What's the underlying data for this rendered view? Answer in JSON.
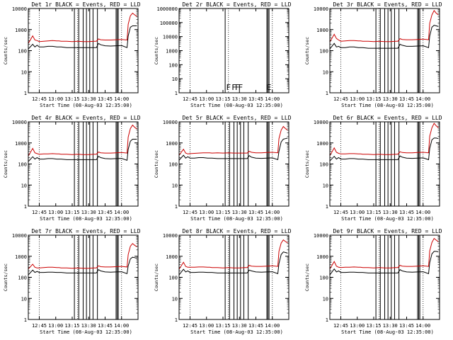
{
  "figure": {
    "ylabel": "Counts/sec",
    "xlabel": "Start Time (08-Aug-03 12:35:00)",
    "series_colors": {
      "events": "#000000",
      "lld": "#cc0000"
    }
  },
  "chart_data": [
    {
      "type": "line",
      "id": "det1",
      "title": "Det 1r BLACK = Events, RED = LLD",
      "ylim": [
        1,
        10000
      ],
      "ytick_labels": [
        "1",
        "10",
        "100",
        "1000",
        "10000"
      ],
      "xtick_labels": [
        "12:45",
        "13:00",
        "13:15",
        "13:30",
        "13:45",
        "14:00"
      ],
      "xlabel": "Start Time (08-Aug-03 12:35:00)",
      "ylabel": "Counts/sec",
      "x_minutes": [
        0,
        4,
        6,
        8,
        10,
        14,
        18,
        22,
        26,
        28,
        30,
        35,
        40,
        45,
        50,
        55,
        60,
        62,
        64,
        66,
        70,
        75,
        80,
        85,
        90,
        91,
        93,
        95,
        97,
        99
      ],
      "series": [
        {
          "name": "Events",
          "values": [
            120,
            200,
            150,
            180,
            150,
            150,
            160,
            160,
            150,
            150,
            150,
            140,
            140,
            140,
            140,
            140,
            140,
            140,
            220,
            190,
            170,
            165,
            170,
            175,
            140,
            500,
            1300,
            1500,
            1500,
            1500
          ]
        },
        {
          "name": "LLD",
          "values": [
            220,
            500,
            320,
            300,
            270,
            280,
            290,
            300,
            290,
            290,
            280,
            280,
            270,
            280,
            270,
            270,
            280,
            280,
            360,
            330,
            320,
            320,
            330,
            340,
            320,
            1800,
            4500,
            6000,
            5000,
            4200
          ]
        }
      ],
      "vlines_dotted": [
        10,
        45,
        85
      ],
      "vlines_solid": [
        42,
        46,
        50,
        53,
        56,
        59,
        63,
        80,
        81,
        82
      ]
    },
    {
      "type": "line",
      "id": "det2",
      "title": "Det 2r BLACK = Events, RED = LLD",
      "ylim": [
        1,
        1000000
      ],
      "ytick_labels": [
        "1",
        "10",
        "100",
        "1000",
        "10000",
        "100000",
        "1000000"
      ],
      "xtick_labels": [
        "12:45",
        "13:00",
        "13:15",
        "13:30",
        "13:45",
        "14:00"
      ],
      "xlabel": "Start Time (08-Aug-03 12:35:00)",
      "ylabel": "Counts/sec",
      "x_minutes": [],
      "series": [],
      "vlines_dotted": [
        10,
        45,
        85
      ],
      "vlines_solid": [
        42,
        80,
        81,
        82
      ],
      "flags": [
        {
          "label": "F",
          "x_minutes": 45
        },
        {
          "label": "F",
          "x_minutes": 50
        },
        {
          "label": "F",
          "x_minutes": 53
        },
        {
          "label": "F",
          "x_minutes": 56
        },
        {
          "label": "E",
          "x_minutes": 82
        }
      ]
    },
    {
      "type": "line",
      "id": "det3",
      "title": "Det 3r BLACK = Events, RED = LLD",
      "ylim": [
        1,
        10000
      ],
      "ytick_labels": [
        "1",
        "10",
        "100",
        "1000",
        "10000"
      ],
      "xtick_labels": [
        "12:45",
        "13:00",
        "13:15",
        "13:30",
        "13:45",
        "14:00"
      ],
      "xlabel": "Start Time (08-Aug-03 12:35:00)",
      "ylabel": "Counts/sec",
      "x_minutes": [
        0,
        4,
        6,
        8,
        10,
        14,
        18,
        22,
        26,
        28,
        30,
        35,
        40,
        45,
        50,
        55,
        60,
        62,
        64,
        66,
        70,
        75,
        80,
        85,
        90,
        91,
        93,
        95,
        97,
        99
      ],
      "series": [
        {
          "name": "Events",
          "values": [
            120,
            220,
            150,
            160,
            140,
            140,
            150,
            150,
            140,
            140,
            140,
            130,
            130,
            130,
            130,
            130,
            130,
            130,
            200,
            180,
            160,
            160,
            165,
            170,
            140,
            500,
            1300,
            1600,
            1500,
            1400
          ]
        },
        {
          "name": "LLD",
          "values": [
            260,
            600,
            380,
            320,
            280,
            290,
            300,
            300,
            290,
            290,
            280,
            280,
            270,
            280,
            270,
            270,
            280,
            280,
            370,
            340,
            330,
            330,
            340,
            350,
            330,
            2000,
            5000,
            8000,
            6000,
            5000
          ]
        }
      ],
      "vlines_dotted": [
        10,
        45,
        85
      ],
      "vlines_solid": [
        42,
        46,
        50,
        53,
        56,
        59,
        63,
        80,
        81,
        82
      ]
    },
    {
      "type": "line",
      "id": "det4",
      "title": "Det 4r BLACK = Events, RED = LLD",
      "ylim": [
        1,
        10000
      ],
      "ytick_labels": [
        "1",
        "10",
        "100",
        "1000",
        "10000"
      ],
      "xtick_labels": [
        "12:45",
        "13:00",
        "13:15",
        "13:30",
        "13:45",
        "14:00"
      ],
      "xlabel": "Start Time (08-Aug-03 12:35:00)",
      "ylabel": "Counts/sec",
      "x_minutes": [
        0,
        4,
        6,
        8,
        10,
        14,
        18,
        22,
        26,
        28,
        30,
        35,
        40,
        45,
        50,
        55,
        60,
        62,
        64,
        66,
        70,
        75,
        80,
        85,
        90,
        91,
        93,
        95,
        97,
        99
      ],
      "series": [
        {
          "name": "Events",
          "values": [
            130,
            220,
            170,
            200,
            170,
            170,
            180,
            180,
            170,
            170,
            170,
            160,
            160,
            160,
            160,
            160,
            160,
            160,
            230,
            200,
            180,
            175,
            180,
            185,
            150,
            500,
            1200,
            1500,
            1500,
            1500
          ]
        },
        {
          "name": "LLD",
          "values": [
            240,
            550,
            340,
            310,
            290,
            300,
            300,
            310,
            300,
            300,
            290,
            290,
            280,
            290,
            280,
            280,
            290,
            290,
            370,
            340,
            330,
            330,
            340,
            350,
            330,
            1900,
            4800,
            7000,
            5500,
            4500
          ]
        }
      ],
      "vlines_dotted": [
        10,
        45,
        85
      ],
      "vlines_solid": [
        42,
        46,
        50,
        53,
        56,
        59,
        63,
        80,
        81,
        82
      ]
    },
    {
      "type": "line",
      "id": "det5",
      "title": "Det 5r BLACK = Events, RED = LLD",
      "ylim": [
        1,
        10000
      ],
      "ytick_labels": [
        "1",
        "10",
        "100",
        "1000",
        "10000"
      ],
      "xtick_labels": [
        "12:45",
        "13:00",
        "13:15",
        "13:30",
        "13:45",
        "14:00"
      ],
      "xlabel": "Start Time (08-Aug-03 12:35:00)",
      "ylabel": "Counts/sec",
      "x_minutes": [
        0,
        4,
        6,
        8,
        10,
        14,
        18,
        22,
        26,
        28,
        30,
        35,
        40,
        45,
        50,
        55,
        60,
        62,
        64,
        66,
        70,
        75,
        80,
        85,
        90,
        91,
        93,
        95,
        97,
        99
      ],
      "series": [
        {
          "name": "Events",
          "values": [
            150,
            260,
            190,
            220,
            190,
            190,
            200,
            200,
            190,
            190,
            190,
            180,
            180,
            180,
            180,
            180,
            180,
            180,
            250,
            210,
            190,
            185,
            190,
            195,
            160,
            400,
            1100,
            1500,
            1600,
            1700
          ]
        },
        {
          "name": "LLD",
          "values": [
            260,
            500,
            330,
            300,
            310,
            320,
            330,
            340,
            340,
            340,
            330,
            340,
            330,
            340,
            330,
            330,
            330,
            330,
            400,
            360,
            340,
            340,
            350,
            360,
            340,
            1600,
            4000,
            6000,
            4800,
            4000
          ]
        }
      ],
      "vlines_dotted": [
        10,
        45,
        85
      ],
      "vlines_solid": [
        42,
        46,
        50,
        53,
        56,
        59,
        63,
        80,
        81,
        82
      ]
    },
    {
      "type": "line",
      "id": "det6",
      "title": "Det 6r BLACK = Events, RED = LLD",
      "ylim": [
        1,
        10000
      ],
      "ytick_labels": [
        "1",
        "10",
        "100",
        "1000",
        "10000"
      ],
      "xtick_labels": [
        "12:45",
        "13:00",
        "13:15",
        "13:30",
        "13:45",
        "14:00"
      ],
      "xlabel": "Start Time (08-Aug-03 12:35:00)",
      "ylabel": "Counts/sec",
      "x_minutes": [
        0,
        4,
        6,
        8,
        10,
        14,
        18,
        22,
        26,
        28,
        30,
        35,
        40,
        45,
        50,
        55,
        60,
        62,
        64,
        66,
        70,
        75,
        80,
        85,
        90,
        91,
        93,
        95,
        97,
        99
      ],
      "series": [
        {
          "name": "Events",
          "values": [
            140,
            230,
            170,
            200,
            170,
            170,
            180,
            180,
            170,
            170,
            170,
            160,
            160,
            160,
            160,
            160,
            160,
            160,
            240,
            210,
            190,
            185,
            190,
            195,
            160,
            550,
            1400,
            1700,
            1700,
            1600
          ]
        },
        {
          "name": "LLD",
          "values": [
            250,
            580,
            360,
            320,
            300,
            300,
            310,
            310,
            300,
            300,
            290,
            290,
            280,
            290,
            280,
            280,
            290,
            290,
            380,
            350,
            340,
            340,
            350,
            360,
            340,
            2100,
            5200,
            8500,
            6500,
            5200
          ]
        }
      ],
      "vlines_dotted": [
        10,
        45,
        85
      ],
      "vlines_solid": [
        42,
        46,
        50,
        53,
        56,
        59,
        63,
        80,
        81,
        82
      ]
    },
    {
      "type": "line",
      "id": "det7",
      "title": "Det 7r BLACK = Events, RED = LLD",
      "ylim": [
        1,
        10000
      ],
      "ytick_labels": [
        "1",
        "10",
        "100",
        "1000",
        "10000"
      ],
      "xtick_labels": [
        "12:45",
        "13:00",
        "13:15",
        "13:30",
        "13:45",
        "14:00"
      ],
      "xlabel": "Start Time (08-Aug-03 12:35:00)",
      "ylabel": "Counts/sec",
      "x_minutes": [
        0,
        4,
        6,
        8,
        10,
        14,
        18,
        22,
        26,
        28,
        30,
        35,
        40,
        45,
        50,
        55,
        60,
        62,
        64,
        66,
        70,
        75,
        80,
        85,
        90,
        91,
        93,
        95,
        97,
        99
      ],
      "series": [
        {
          "name": "Events",
          "values": [
            130,
            220,
            170,
            190,
            170,
            170,
            175,
            175,
            170,
            170,
            170,
            160,
            160,
            160,
            160,
            160,
            160,
            160,
            230,
            200,
            180,
            175,
            180,
            185,
            150,
            350,
            750,
            900,
            850,
            800
          ]
        },
        {
          "name": "LLD",
          "values": [
            250,
            420,
            300,
            280,
            280,
            290,
            300,
            300,
            290,
            290,
            280,
            280,
            270,
            280,
            270,
            270,
            280,
            280,
            350,
            320,
            310,
            310,
            320,
            330,
            310,
            1200,
            3000,
            4000,
            3300,
            2800
          ]
        }
      ],
      "vlines_dotted": [
        10,
        45,
        85
      ],
      "vlines_solid": [
        42,
        46,
        50,
        53,
        56,
        59,
        63,
        80,
        81,
        82
      ]
    },
    {
      "type": "line",
      "id": "det8",
      "title": "Det 8r BLACK = Events, RED = LLD",
      "ylim": [
        1,
        10000
      ],
      "ytick_labels": [
        "1",
        "10",
        "100",
        "1000",
        "10000"
      ],
      "xtick_labels": [
        "12:45",
        "13:00",
        "13:15",
        "13:30",
        "13:45",
        "14:00"
      ],
      "xlabel": "Start Time (08-Aug-03 12:35:00)",
      "ylabel": "Counts/sec",
      "x_minutes": [
        0,
        4,
        6,
        8,
        10,
        14,
        18,
        22,
        26,
        28,
        30,
        35,
        40,
        45,
        50,
        55,
        60,
        62,
        64,
        66,
        70,
        75,
        80,
        85,
        90,
        91,
        93,
        95,
        97,
        99
      ],
      "series": [
        {
          "name": "Events",
          "values": [
            130,
            240,
            180,
            200,
            170,
            170,
            175,
            175,
            170,
            170,
            170,
            160,
            160,
            160,
            160,
            160,
            160,
            160,
            220,
            200,
            180,
            175,
            180,
            185,
            150,
            450,
            1200,
            1600,
            1500,
            1400
          ]
        },
        {
          "name": "LLD",
          "values": [
            240,
            520,
            330,
            300,
            300,
            300,
            310,
            310,
            300,
            300,
            290,
            290,
            280,
            290,
            280,
            280,
            290,
            290,
            370,
            340,
            330,
            330,
            340,
            350,
            330,
            1700,
            4200,
            6000,
            5000,
            4300
          ]
        }
      ],
      "vlines_dotted": [
        10,
        45,
        85
      ],
      "vlines_solid": [
        42,
        46,
        50,
        53,
        56,
        59,
        63,
        80,
        81,
        82
      ]
    },
    {
      "type": "line",
      "id": "det9",
      "title": "Det 9r BLACK = Events, RED = LLD",
      "ylim": [
        1,
        10000
      ],
      "ytick_labels": [
        "1",
        "10",
        "100",
        "1000",
        "10000"
      ],
      "xtick_labels": [
        "12:45",
        "13:00",
        "13:15",
        "13:30",
        "13:45",
        "14:00"
      ],
      "xlabel": "Start Time (08-Aug-03 12:35:00)",
      "ylabel": "Counts/sec",
      "x_minutes": [
        0,
        4,
        6,
        8,
        10,
        14,
        18,
        22,
        26,
        28,
        30,
        35,
        40,
        45,
        50,
        55,
        60,
        62,
        64,
        66,
        70,
        75,
        80,
        85,
        90,
        91,
        93,
        95,
        97,
        99
      ],
      "series": [
        {
          "name": "Events",
          "values": [
            130,
            250,
            180,
            200,
            170,
            170,
            175,
            175,
            170,
            170,
            170,
            160,
            160,
            160,
            160,
            160,
            160,
            160,
            230,
            200,
            180,
            175,
            180,
            185,
            150,
            500,
            1300,
            1700,
            1700,
            1600
          ]
        },
        {
          "name": "LLD",
          "values": [
            250,
            560,
            340,
            300,
            290,
            300,
            300,
            310,
            300,
            300,
            290,
            290,
            280,
            290,
            280,
            280,
            290,
            290,
            370,
            340,
            330,
            330,
            340,
            350,
            330,
            1800,
            4500,
            7000,
            5800,
            4800
          ]
        }
      ],
      "vlines_dotted": [
        10,
        45,
        85
      ],
      "vlines_solid": [
        42,
        46,
        50,
        53,
        56,
        59,
        63,
        80,
        81,
        82
      ]
    }
  ]
}
